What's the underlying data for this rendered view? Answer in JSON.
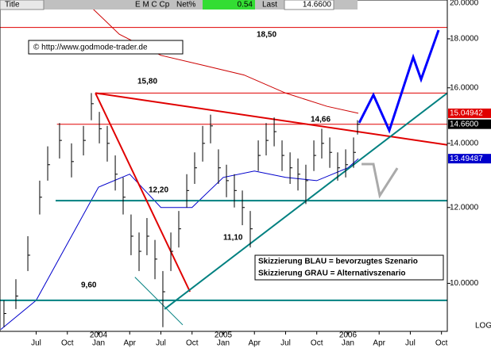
{
  "header": {
    "title": "Title",
    "symbol": "E M C Cp",
    "net_label": "Net%",
    "net_value": "0.54",
    "last_label": "Last",
    "last_value": "14.6600"
  },
  "chart_data": {
    "type": "ohlc",
    "log_scale": true,
    "scale_label": "LOG",
    "copyright": "© http://www.godmode-trader.de",
    "legend_lines": [
      "Skizzierung BLAU = bevorzugtes Szenario",
      "Skizzierung GRAU = Alternativszenario"
    ],
    "annotations": [
      "18,50",
      "15,80",
      "14,66",
      "12,20",
      "11,10",
      "9,60"
    ],
    "xlim": [
      2.52,
      45.56
    ],
    "ylim": [
      8.91,
      19.76
    ],
    "xticks": [
      {
        "value": 6,
        "label": "Jul"
      },
      {
        "value": 9,
        "label": "Oct"
      },
      {
        "value": 12,
        "label": "Jan"
      },
      {
        "value": 15,
        "label": "Apr"
      },
      {
        "value": 18,
        "label": "Jul"
      },
      {
        "value": 21,
        "label": "Oct"
      },
      {
        "value": 24,
        "label": "Jan"
      },
      {
        "value": 27,
        "label": "Apr"
      },
      {
        "value": 30,
        "label": "Jul"
      },
      {
        "value": 33,
        "label": "Oct"
      },
      {
        "value": 36,
        "label": "Jan"
      },
      {
        "value": 39,
        "label": "Apr"
      },
      {
        "value": 42,
        "label": "Jul"
      },
      {
        "value": 45,
        "label": "Oct"
      }
    ],
    "year_labels": [
      {
        "value": 12,
        "label": "2004"
      },
      {
        "value": 24,
        "label": "2005"
      },
      {
        "value": 36,
        "label": "2006"
      }
    ],
    "yticks": [
      {
        "value": 20,
        "label": "20.0000"
      },
      {
        "value": 18,
        "label": "18.0000"
      },
      {
        "value": 16,
        "label": "16.0000"
      },
      {
        "value": 14,
        "label": "14.0000"
      },
      {
        "value": 12,
        "label": "12.0000"
      },
      {
        "value": 10,
        "label": "10.0000"
      }
    ],
    "price_tags": [
      {
        "value": 15.04942,
        "label": "15.04942",
        "color": "#e00000"
      },
      {
        "value": 14.66,
        "label": "14.6600",
        "color": "#000000"
      },
      {
        "value": 13.49487,
        "label": "13.49487",
        "color": "#0000cc"
      }
    ],
    "bar_color": "#000000",
    "x": [
      2.9,
      4.05,
      5.2,
      6.34,
      7.11,
      8.25,
      9.4,
      10.55,
      11.31,
      12.08,
      12.84,
      13.61,
      14.37,
      15.13,
      15.9,
      16.66,
      17.43,
      18.19,
      18.96,
      19.72,
      20.49,
      21.25,
      22.02,
      22.78,
      23.54,
      24.31,
      25.07,
      25.84,
      26.6,
      27.37,
      28.13,
      28.9,
      29.66,
      30.43,
      31.19,
      31.95,
      32.72,
      33.48,
      34.25,
      35.01,
      35.78,
      36.54,
      36.92
    ],
    "high": [
      9.6,
      10.1,
      11.2,
      12.8,
      13.9,
      14.7,
      14.0,
      14.6,
      15.8,
      15.1,
      14.6,
      13.6,
      12.9,
      11.8,
      11.3,
      11.7,
      11.1,
      10.3,
      11.3,
      11.9,
      13.0,
      13.7,
      14.6,
      15.0,
      13.8,
      13.3,
      13.0,
      12.5,
      11.9,
      14.1,
      14.7,
      14.9,
      14.1,
      13.7,
      13.5,
      13.3,
      14.1,
      14.5,
      14.2,
      13.7,
      13.8,
      14.2,
      14.8
    ],
    "low": [
      9.0,
      9.4,
      10.3,
      11.8,
      12.8,
      13.5,
      12.9,
      13.6,
      14.8,
      14.0,
      13.4,
      12.5,
      11.8,
      10.7,
      10.3,
      10.7,
      10.1,
      9.0,
      10.3,
      10.9,
      12.0,
      12.7,
      13.4,
      14.0,
      12.7,
      12.3,
      12.0,
      11.5,
      10.9,
      13.1,
      13.6,
      13.9,
      13.1,
      12.7,
      12.5,
      12.1,
      13.1,
      13.5,
      13.2,
      12.8,
      12.9,
      13.2,
      14.3
    ],
    "close": [
      9.3,
      9.7,
      10.7,
      12.3,
      13.3,
      14.1,
      13.4,
      14.1,
      15.4,
      14.5,
      14.0,
      13.0,
      12.3,
      11.2,
      10.8,
      11.2,
      10.6,
      9.8,
      10.8,
      11.4,
      12.5,
      13.2,
      14.0,
      14.6,
      13.2,
      12.8,
      12.5,
      12.0,
      11.4,
      13.6,
      14.1,
      14.4,
      13.6,
      13.2,
      13.0,
      12.8,
      13.6,
      14.0,
      13.7,
      13.2,
      13.3,
      13.7,
      14.66
    ],
    "lines": [
      {
        "color": "#cc0000",
        "width": 1,
        "x": [
          10.7,
          14,
          18,
          22,
          26,
          30,
          34,
          37
        ],
        "values": [
          19.7,
          18.2,
          17.3,
          16.9,
          16.5,
          15.8,
          15.3,
          15.05
        ]
      },
      {
        "color": "#0000cc",
        "width": 1,
        "x": [
          2.6,
          6,
          9,
          12,
          15,
          18,
          21,
          24,
          27,
          30,
          33,
          36,
          37
        ],
        "values": [
          8.95,
          9.6,
          11.0,
          12.6,
          13.0,
          12.0,
          12.0,
          12.9,
          13.1,
          12.9,
          12.8,
          13.2,
          13.49
        ]
      },
      {
        "color": "#e00000",
        "width": 1,
        "x": [
          2.52,
          45.56
        ],
        "values": [
          18.5,
          18.5
        ]
      },
      {
        "color": "#e00000",
        "width": 1,
        "x": [
          11.7,
          45.56
        ],
        "values": [
          15.8,
          15.8
        ]
      },
      {
        "color": "#e00000",
        "width": 1,
        "x": [
          8.0,
          45.56
        ],
        "values": [
          14.66,
          14.66
        ]
      },
      {
        "color": "#008080",
        "width": 2,
        "x": [
          7.87,
          45.56
        ],
        "values": [
          12.2,
          12.2
        ]
      },
      {
        "color": "#008080",
        "width": 2,
        "x": [
          2.52,
          45.56
        ],
        "values": [
          9.6,
          9.6
        ]
      },
      {
        "color": "#e00000",
        "width": 2,
        "x": [
          11.7,
          45.56
        ],
        "values": [
          15.8,
          13.95
        ]
      },
      {
        "color": "#e00000",
        "width": 2,
        "x": [
          11.7,
          20.8
        ],
        "values": [
          15.8,
          9.8
        ]
      },
      {
        "color": "#008080",
        "width": 2,
        "x": [
          18.35,
          45.56
        ],
        "values": [
          9.4,
          15.8
        ]
      },
      {
        "color": "#008080",
        "width": 1,
        "x": [
          15.5,
          20.1
        ],
        "values": [
          10.15,
          9.05
        ]
      },
      {
        "color": "#0000ff",
        "width": 3,
        "x": [
          37.08,
          38.45,
          39.98,
          42.28,
          43.04,
          44.72
        ],
        "values": [
          14.71,
          15.73,
          14.44,
          17.22,
          16.33,
          18.38
        ]
      },
      {
        "color": "#aaaaaa",
        "width": 3,
        "x": [
          37.31,
          38.45,
          39.06,
          40.75
        ],
        "values": [
          13.32,
          13.32,
          12.35,
          13.19
        ]
      }
    ]
  }
}
